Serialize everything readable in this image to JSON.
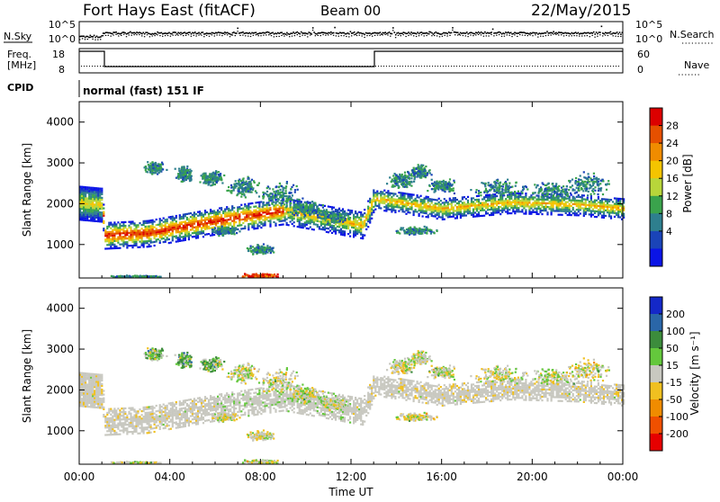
{
  "header": {
    "radar": "Fort Hays East (fitACF)",
    "beam": "Beam 00",
    "date": "22/May/2015"
  },
  "noise_panel": {
    "left_label": "N.Sky",
    "left_ticks": [
      "10^5",
      "10^0"
    ],
    "right_ticks": [
      "10^5",
      "10^0"
    ],
    "right_label": "N.Search"
  },
  "freq_panel": {
    "left_label_line1": "Freq.",
    "left_label_line2": "[MHz]",
    "left_ticks": [
      "18",
      "8"
    ],
    "right_ticks": [
      "60",
      "0"
    ],
    "right_label": "Nave"
  },
  "cpid_panel": {
    "label": "CPID",
    "text": "normal (fast) 151 IF"
  },
  "chart_data": [
    {
      "type": "heatmap",
      "name": "power",
      "ylabel": "Slant Range [km]",
      "yticks": [
        "1000",
        "2000",
        "3000",
        "4000"
      ],
      "xticks": [
        "00:00",
        "04:00",
        "08:00",
        "12:00",
        "16:00",
        "20:00",
        "00:00"
      ],
      "xlim": [
        0,
        24
      ],
      "ylim": [
        180,
        4500
      ],
      "colorbar": {
        "label": "Power [dB]",
        "ticks": [
          "4",
          "8",
          "12",
          "16",
          "20",
          "24",
          "28"
        ],
        "colors": [
          "#0a14e6",
          "#1a44b8",
          "#2e7f8e",
          "#3aa34c",
          "#b8d63a",
          "#f4c400",
          "#f08c00",
          "#e65000",
          "#dc0000"
        ]
      },
      "features": [
        {
          "label": "main band",
          "points": [
            [
              0.0,
              2050
            ],
            [
              1.0,
              2000
            ],
            [
              1.1,
              1250
            ],
            [
              3.0,
              1300
            ],
            [
              6.0,
              1600
            ],
            [
              9.0,
              1850
            ],
            [
              12.5,
              1500
            ],
            [
              13.0,
              2150
            ],
            [
              16.0,
              1900
            ],
            [
              19.0,
              2050
            ],
            [
              22.0,
              2000
            ],
            [
              24.0,
              1900
            ]
          ]
        },
        {
          "label": "upper echoes",
          "points": [
            [
              3.5,
              2700
            ],
            [
              7.0,
              2800
            ],
            [
              9.0,
              2500
            ],
            [
              14.5,
              2900
            ],
            [
              20.0,
              2500
            ],
            [
              23.5,
              2700
            ]
          ]
        }
      ]
    },
    {
      "type": "heatmap",
      "name": "velocity",
      "ylabel": "Slant Range [km]",
      "yticks": [
        "1000",
        "2000",
        "3000",
        "4000"
      ],
      "xticks": [
        "00:00",
        "04:00",
        "08:00",
        "12:00",
        "16:00",
        "20:00",
        "00:00"
      ],
      "xlabel": "Time UT",
      "xlim": [
        0,
        24
      ],
      "ylim": [
        180,
        4500
      ],
      "colorbar": {
        "label": "Velocity [m s⁻¹]",
        "ticks": [
          "200",
          "100",
          "50",
          "15",
          "-15",
          "-50",
          "-100",
          "-200"
        ],
        "colors": [
          "#1428c8",
          "#2a66a8",
          "#3c8c3c",
          "#64c83c",
          "#c8c8c0",
          "#f0c020",
          "#f08c00",
          "#f05000",
          "#e60000"
        ]
      }
    }
  ]
}
